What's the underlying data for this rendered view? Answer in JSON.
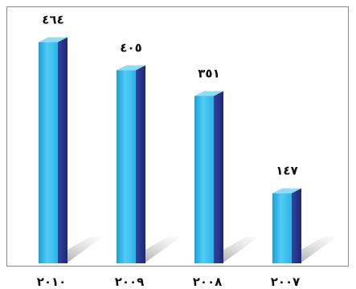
{
  "chart_data": {
    "type": "bar",
    "categories": [
      "٢٠١٠",
      "٢٠٠٩",
      "٢٠٠٨",
      "٢٠٠٧"
    ],
    "values": [
      464,
      405,
      351,
      147
    ],
    "value_labels": [
      "٤٦٤",
      "٤٠٥",
      "٣٥١",
      "١٤٧"
    ],
    "title": "",
    "xlabel": "",
    "ylabel": "",
    "ylim": [
      0,
      480
    ],
    "grid": false,
    "legend": "none",
    "colors": {
      "bar_front": "#29b6ea",
      "bar_side": "#2c3a99",
      "bar_top": "#8fdcf8",
      "shadow": "#9a9a9a",
      "frame": "#8a8a8a",
      "text": "#111111"
    }
  }
}
